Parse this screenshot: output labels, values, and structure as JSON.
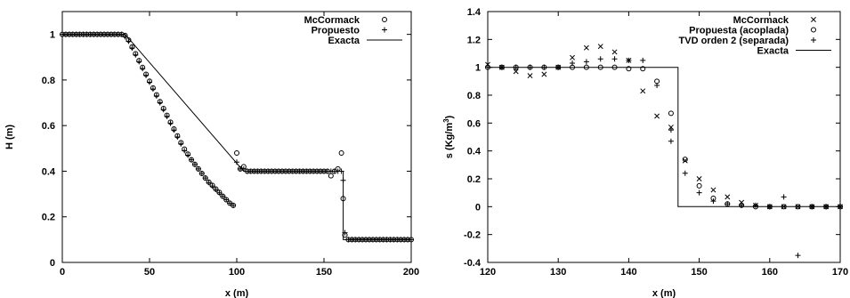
{
  "chart_data": [
    {
      "type": "scatter",
      "title": "",
      "xlabel": "x (m)",
      "ylabel": "H (m)",
      "xlim": [
        0,
        200
      ],
      "ylim": [
        0,
        1.1
      ],
      "xticks": [
        "0",
        "50",
        "100",
        "150",
        "200"
      ],
      "yticks": [
        "0",
        "0.2",
        "0.4",
        "0.6",
        "0.8",
        "1"
      ],
      "legend_position": "top-right",
      "grid": false,
      "series": [
        {
          "name": "McCormack",
          "marker": "circle",
          "x": [
            0,
            2,
            4,
            6,
            8,
            10,
            12,
            14,
            16,
            18,
            20,
            22,
            24,
            26,
            28,
            30,
            32,
            34,
            36,
            38,
            40,
            42,
            44,
            46,
            48,
            50,
            52,
            54,
            56,
            58,
            60,
            62,
            64,
            66,
            68,
            70,
            72,
            74,
            76,
            78,
            80,
            82,
            84,
            86,
            88,
            90,
            92,
            94,
            96,
            98,
            100,
            102,
            104,
            106,
            108,
            110,
            112,
            114,
            116,
            118,
            120,
            122,
            124,
            126,
            128,
            130,
            132,
            134,
            136,
            138,
            140,
            142,
            144,
            146,
            148,
            150,
            152,
            154,
            156,
            158,
            160,
            161,
            162,
            164,
            166,
            168,
            170,
            172,
            174,
            176,
            178,
            180,
            182,
            184,
            186,
            188,
            190,
            192,
            194,
            196,
            198,
            200
          ],
          "y": [
            1,
            1,
            1,
            1,
            1,
            1,
            1,
            1,
            1,
            1,
            1,
            1,
            1,
            1,
            1,
            1,
            1,
            1,
            0.995,
            0.975,
            0.945,
            0.915,
            0.885,
            0.855,
            0.825,
            0.795,
            0.765,
            0.735,
            0.705,
            0.675,
            0.645,
            0.615,
            0.585,
            0.555,
            0.525,
            0.497,
            0.475,
            0.45,
            0.43,
            0.41,
            0.39,
            0.37,
            0.352,
            0.338,
            0.322,
            0.307,
            0.29,
            0.275,
            0.26,
            0.25,
            0.48,
            0.41,
            0.42,
            0.4,
            0.4,
            0.4,
            0.4,
            0.4,
            0.4,
            0.4,
            0.4,
            0.4,
            0.4,
            0.4,
            0.4,
            0.4,
            0.4,
            0.4,
            0.4,
            0.4,
            0.4,
            0.4,
            0.4,
            0.4,
            0.4,
            0.4,
            0.4,
            0.38,
            0.4,
            0.41,
            0.48,
            0.28,
            0.12,
            0.1,
            0.1,
            0.1,
            0.1,
            0.1,
            0.1,
            0.1,
            0.1,
            0.1,
            0.1,
            0.1,
            0.1,
            0.1,
            0.1,
            0.1,
            0.1,
            0.1,
            0.1,
            0.1
          ]
        },
        {
          "name": "Propuesto",
          "marker": "plus",
          "x": [
            0,
            2,
            4,
            6,
            8,
            10,
            12,
            14,
            16,
            18,
            20,
            22,
            24,
            26,
            28,
            30,
            32,
            34,
            36,
            38,
            40,
            42,
            44,
            46,
            48,
            50,
            52,
            54,
            56,
            58,
            60,
            62,
            64,
            66,
            68,
            70,
            72,
            74,
            76,
            78,
            80,
            82,
            84,
            86,
            88,
            90,
            92,
            94,
            96,
            98,
            100,
            102,
            104,
            106,
            108,
            110,
            112,
            114,
            116,
            118,
            120,
            122,
            124,
            126,
            128,
            130,
            132,
            134,
            136,
            138,
            140,
            142,
            144,
            146,
            148,
            150,
            152,
            154,
            156,
            158,
            160,
            161,
            162,
            164,
            166,
            168,
            170,
            172,
            174,
            176,
            178,
            180,
            182,
            184,
            186,
            188,
            190,
            192,
            194,
            196,
            198,
            200
          ],
          "y": [
            1,
            1,
            1,
            1,
            1,
            1,
            1,
            1,
            1,
            1,
            1,
            1,
            1,
            1,
            1,
            1,
            1,
            1,
            0.99,
            0.97,
            0.94,
            0.91,
            0.88,
            0.85,
            0.82,
            0.79,
            0.76,
            0.73,
            0.7,
            0.67,
            0.64,
            0.61,
            0.58,
            0.55,
            0.52,
            0.49,
            0.47,
            0.45,
            0.43,
            0.41,
            0.39,
            0.37,
            0.35,
            0.335,
            0.32,
            0.305,
            0.29,
            0.275,
            0.26,
            0.25,
            0.44,
            0.41,
            0.41,
            0.4,
            0.4,
            0.4,
            0.4,
            0.4,
            0.4,
            0.4,
            0.4,
            0.4,
            0.4,
            0.4,
            0.4,
            0.4,
            0.4,
            0.4,
            0.4,
            0.4,
            0.4,
            0.4,
            0.4,
            0.4,
            0.4,
            0.4,
            0.4,
            0.4,
            0.4,
            0.4,
            0.4,
            0.36,
            0.13,
            0.1,
            0.1,
            0.1,
            0.1,
            0.1,
            0.1,
            0.1,
            0.1,
            0.1,
            0.1,
            0.1,
            0.1,
            0.1,
            0.1,
            0.1,
            0.1,
            0.1,
            0.1,
            0.1
          ]
        },
        {
          "name": "Exacta",
          "marker": "line",
          "x": [
            0,
            36,
            104,
            161,
            161,
            200
          ],
          "y": [
            1,
            1,
            0.4,
            0.4,
            0.1,
            0.1
          ]
        }
      ]
    },
    {
      "type": "scatter",
      "title": "",
      "xlabel": "x (m)",
      "ylabel": "s (Kg/m3)",
      "ylabel_parts": [
        "s (Kg/m",
        "3",
        ")"
      ],
      "xlim": [
        120,
        170
      ],
      "ylim": [
        -0.4,
        1.4
      ],
      "xticks": [
        "120",
        "130",
        "140",
        "150",
        "160",
        "170"
      ],
      "yticks": [
        "-0.4",
        "-0.2",
        "0",
        "0.2",
        "0.4",
        "0.6",
        "0.8",
        "1",
        "1.2",
        "1.4"
      ],
      "legend_position": "top-right",
      "grid": false,
      "series": [
        {
          "name": "McCormack",
          "marker": "x",
          "x": [
            120,
            122,
            124,
            126,
            128,
            130,
            132,
            134,
            136,
            138,
            140,
            142,
            144,
            146,
            148,
            150,
            152,
            154,
            156,
            158,
            160,
            162,
            164,
            166,
            168,
            170
          ],
          "y": [
            1.02,
            1.0,
            0.97,
            0.94,
            0.95,
            1.0,
            1.07,
            1.14,
            1.15,
            1.11,
            1.05,
            0.83,
            0.65,
            0.57,
            0.33,
            0.2,
            0.12,
            0.07,
            0.03,
            0.01,
            0.0,
            0.0,
            0.0,
            0.0,
            0.0,
            0.0
          ]
        },
        {
          "name": "Propuesta (acoplada)",
          "marker": "circle",
          "x": [
            120,
            122,
            124,
            126,
            128,
            130,
            132,
            134,
            136,
            138,
            140,
            142,
            144,
            146,
            148,
            150,
            152,
            154,
            156,
            158,
            160,
            162,
            164,
            166,
            168,
            170
          ],
          "y": [
            1.0,
            1.0,
            1.0,
            1.0,
            1.0,
            1.0,
            1.0,
            1.0,
            1.0,
            1.0,
            0.99,
            0.99,
            0.9,
            0.67,
            0.34,
            0.15,
            0.06,
            0.02,
            0.01,
            0.0,
            0.0,
            0.0,
            0.0,
            0.0,
            0.0,
            0.0
          ]
        },
        {
          "name": "TVD orden 2 (separada)",
          "marker": "plus",
          "x": [
            120,
            122,
            124,
            126,
            128,
            130,
            132,
            134,
            136,
            138,
            140,
            142,
            144,
            146,
            146,
            148,
            150,
            152,
            154,
            156,
            158,
            160,
            162,
            164,
            166,
            168,
            170
          ],
          "y": [
            1.0,
            1.0,
            1.0,
            1.0,
            1.0,
            1.0,
            1.03,
            1.04,
            1.06,
            1.06,
            1.05,
            1.05,
            0.87,
            0.55,
            0.47,
            0.24,
            0.1,
            0.04,
            0.02,
            0.01,
            0.01,
            0.0,
            0.07,
            -0.35,
            0.0,
            0.0,
            0.0
          ]
        },
        {
          "name": "Exacta",
          "marker": "line",
          "x": [
            120,
            147,
            147,
            170
          ],
          "y": [
            1,
            1,
            0,
            0
          ]
        }
      ]
    }
  ]
}
